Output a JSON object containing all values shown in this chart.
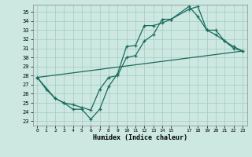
{
  "xlabel": "Humidex (Indice chaleur)",
  "bg_color": "#cce8e0",
  "line_color": "#1a6b5e",
  "grid_color": "#aacfc8",
  "xlim": [
    -0.5,
    23.5
  ],
  "ylim": [
    22.5,
    35.8
  ],
  "yticks": [
    23,
    24,
    25,
    26,
    27,
    28,
    29,
    30,
    31,
    32,
    33,
    34,
    35
  ],
  "xticks": [
    0,
    1,
    2,
    3,
    4,
    5,
    6,
    7,
    8,
    9,
    10,
    11,
    12,
    13,
    14,
    15,
    17,
    18,
    19,
    20,
    21,
    22,
    23
  ],
  "xtick_labels": [
    "0",
    "1",
    "2",
    "3",
    "4",
    "5",
    "6",
    "7",
    "8",
    "9",
    "10",
    "11",
    "12",
    "13",
    "14",
    "15",
    "17",
    "18",
    "19",
    "20",
    "21",
    "22",
    "23"
  ],
  "line1_x": [
    0,
    1,
    2,
    3,
    4,
    5,
    6,
    7,
    8,
    9,
    10,
    11,
    12,
    13,
    14,
    15,
    17,
    18,
    19,
    20,
    21,
    22,
    23
  ],
  "line1_y": [
    27.8,
    26.5,
    25.5,
    25.0,
    24.3,
    24.3,
    23.2,
    24.3,
    26.8,
    28.2,
    31.2,
    31.3,
    33.5,
    33.5,
    33.8,
    34.2,
    35.3,
    35.6,
    33.0,
    32.5,
    31.8,
    31.0,
    30.7
  ],
  "line2_x": [
    0,
    2,
    3,
    4,
    5,
    6,
    7,
    8,
    9,
    10,
    11,
    12,
    13,
    14,
    15,
    17,
    18,
    19,
    20,
    21,
    22,
    23
  ],
  "line2_y": [
    27.8,
    25.5,
    25.0,
    24.8,
    24.5,
    24.2,
    26.5,
    27.8,
    28.0,
    30.0,
    30.2,
    31.8,
    32.5,
    34.2,
    34.2,
    35.6,
    34.5,
    33.0,
    33.0,
    31.8,
    31.2,
    30.7
  ],
  "line3_x": [
    0,
    23
  ],
  "line3_y": [
    27.8,
    30.7
  ]
}
